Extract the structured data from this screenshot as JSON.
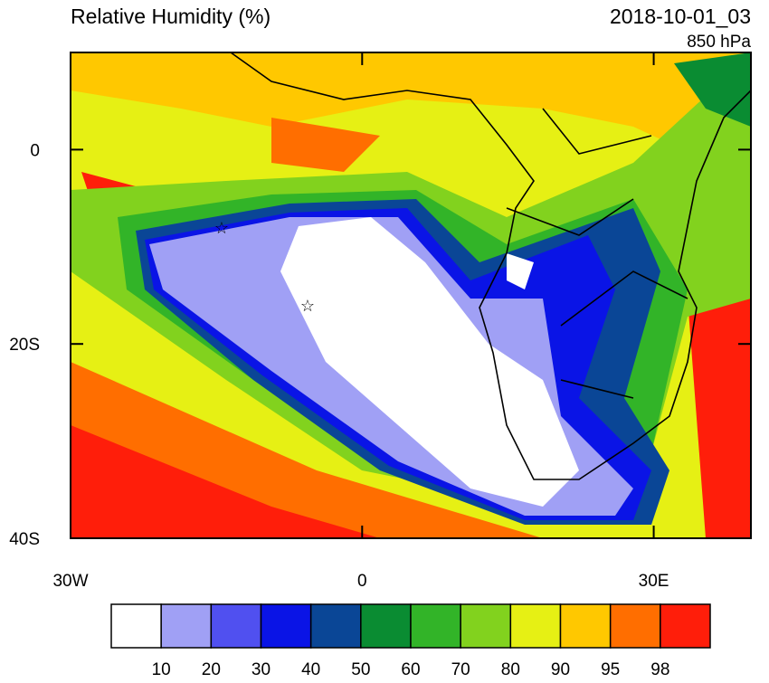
{
  "title": "Relative Humidity (%)",
  "valid_time": "2018-10-01_03",
  "level": "850 hPa",
  "map": {
    "xlim": [
      -30,
      40
    ],
    "ylim": [
      -40,
      10
    ],
    "xticks": [
      {
        "value": -30,
        "label": "30W"
      },
      0,
      {
        "value": 30,
        "label": "30E"
      }
    ],
    "yticks": [
      0,
      {
        "value": -20,
        "label": "20S"
      },
      {
        "value": -40,
        "label": "40S"
      }
    ]
  },
  "colorbar": {
    "levels": [
      10,
      20,
      30,
      40,
      50,
      60,
      70,
      80,
      90,
      95,
      98
    ],
    "colors": [
      "#ffffff",
      "#a0a0f5",
      "#5050f0",
      "#0a14e6",
      "#0a4696",
      "#0a8c32",
      "#32b428",
      "#82d21e",
      "#e6f014",
      "#ffc800",
      "#ff6e00",
      "#ff1e0a"
    ]
  }
}
